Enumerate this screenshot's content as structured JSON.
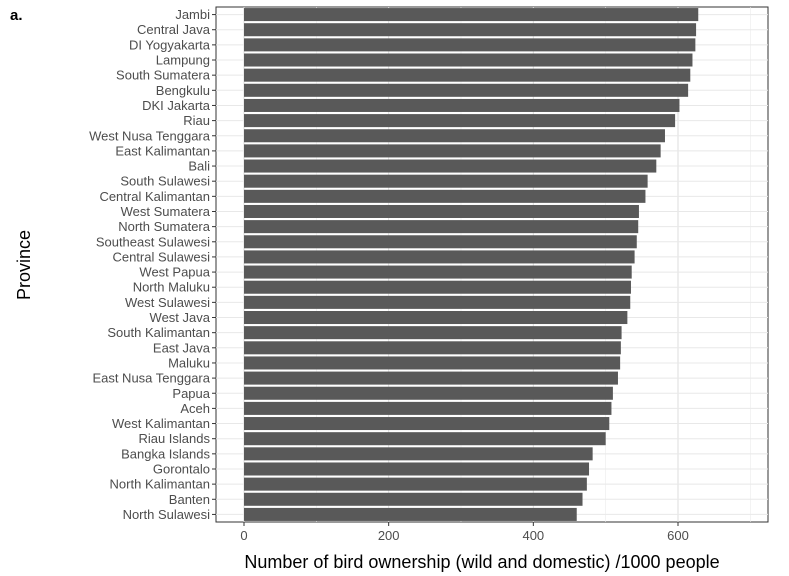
{
  "chart_data": {
    "type": "bar",
    "orientation": "horizontal",
    "panel_label": "a.",
    "title": "",
    "xlabel": "Number of bird ownership (wild and domestic) /1000 people",
    "ylabel": "Province",
    "xlim": [
      0,
      730
    ],
    "xticks": [
      0,
      200,
      400,
      600
    ],
    "grid": true,
    "bar_color": "#595959",
    "categories": [
      "Jambi",
      "Central Java",
      "DI Yogyakarta",
      "Lampung",
      "South Sumatera",
      "Bengkulu",
      "DKI Jakarta",
      "Riau",
      "West Nusa Tenggara",
      "East Kalimantan",
      "Bali",
      "South Sulawesi",
      "Central Kalimantan",
      "West Sumatera",
      "North Sumatera",
      "Southeast Sulawesi",
      "Central Sulawesi",
      "West Papua",
      "North Maluku",
      "West Sulawesi",
      "West Java",
      "South Kalimantan",
      "East Java",
      "Maluku",
      "East Nusa Tenggara",
      "Papua",
      "Aceh",
      "West Kalimantan",
      "Riau Islands",
      "Bangka Islands",
      "Gorontalo",
      "North Kalimantan",
      "Banten",
      "North Sulawesi"
    ],
    "values": [
      628,
      625,
      624,
      620,
      617,
      614,
      602,
      596,
      582,
      576,
      570,
      558,
      555,
      546,
      545,
      543,
      540,
      536,
      535,
      534,
      530,
      522,
      521,
      520,
      517,
      510,
      508,
      505,
      500,
      482,
      477,
      474,
      468,
      460
    ]
  }
}
